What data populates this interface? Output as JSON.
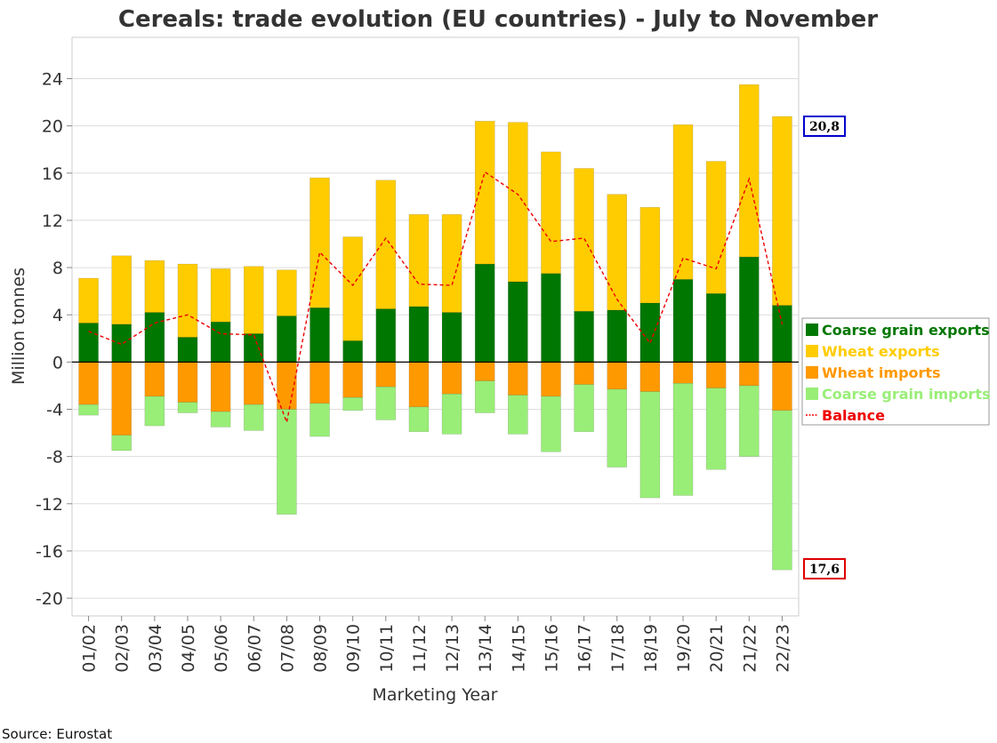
{
  "colors": {
    "coarse_exports": "#007700",
    "wheat_exports": "#ffcc00",
    "wheat_imports": "#ff9900",
    "coarse_imports": "#99ee77",
    "balance": "#ee0000",
    "callout_top_border": "#0000cc",
    "callout_bottom_border": "#dd0000"
  },
  "source": "Source: Eurostat",
  "callouts": {
    "top": "20,8",
    "bottom": "17,6"
  },
  "chart_data": {
    "type": "bar",
    "stacked": true,
    "title": "Cereals: trade evolution (EU countries) - July to November",
    "xlabel": "Marketing Year",
    "ylabel": "Million tonnes",
    "ylim": [
      -21.5,
      27.5
    ],
    "yticks": [
      24,
      20,
      16,
      12,
      8,
      4,
      0,
      -4,
      -8,
      -12,
      -16,
      -20
    ],
    "grid": true,
    "legend_position": "right",
    "categories": [
      "01/02",
      "02/03",
      "03/04",
      "04/05",
      "05/06",
      "06/07",
      "07/08",
      "08/09",
      "09/10",
      "10/11",
      "11/12",
      "12/13",
      "13/14",
      "14/15",
      "15/16",
      "16/17",
      "17/18",
      "18/19",
      "19/20",
      "20/21",
      "21/22",
      "22/23"
    ],
    "series": [
      {
        "name": "Coarse grain exports",
        "kind": "bar",
        "color_key": "coarse_exports",
        "values": [
          3.3,
          3.2,
          4.2,
          2.1,
          3.4,
          2.4,
          3.9,
          4.6,
          1.8,
          4.5,
          4.7,
          4.2,
          8.3,
          6.8,
          7.5,
          4.3,
          4.4,
          5.0,
          7.0,
          5.8,
          8.9,
          4.8
        ]
      },
      {
        "name": "Wheat exports",
        "kind": "bar",
        "color_key": "wheat_exports",
        "values": [
          3.8,
          5.8,
          4.4,
          6.2,
          4.5,
          5.7,
          3.9,
          11.0,
          8.8,
          10.9,
          7.8,
          8.3,
          12.1,
          13.5,
          10.3,
          12.1,
          9.8,
          8.1,
          13.1,
          11.2,
          14.6,
          16.0
        ]
      },
      {
        "name": "Wheat imports",
        "kind": "bar",
        "color_key": "wheat_imports",
        "values": [
          -3.6,
          -6.2,
          -2.9,
          -3.4,
          -4.2,
          -3.6,
          -4.0,
          -3.5,
          -3.0,
          -2.1,
          -3.8,
          -2.7,
          -1.6,
          -2.8,
          -2.9,
          -1.9,
          -2.3,
          -2.5,
          -1.8,
          -2.2,
          -2.0,
          -4.1
        ]
      },
      {
        "name": "Coarse grain imports",
        "kind": "bar",
        "color_key": "coarse_imports",
        "values": [
          -0.9,
          -1.3,
          -2.5,
          -0.9,
          -1.3,
          -2.2,
          -8.9,
          -2.8,
          -1.1,
          -2.8,
          -2.1,
          -3.4,
          -2.7,
          -3.3,
          -4.7,
          -4.0,
          -6.6,
          -9.0,
          -9.5,
          -6.9,
          -6.0,
          -13.5
        ]
      },
      {
        "name": "Balance",
        "kind": "line",
        "color_key": "balance",
        "values": [
          2.6,
          1.5,
          3.3,
          4.0,
          2.4,
          2.3,
          -5.1,
          9.3,
          6.5,
          10.5,
          6.6,
          6.5,
          16.1,
          14.2,
          10.2,
          10.5,
          5.3,
          1.6,
          8.8,
          7.9,
          15.5,
          3.2
        ]
      }
    ]
  }
}
